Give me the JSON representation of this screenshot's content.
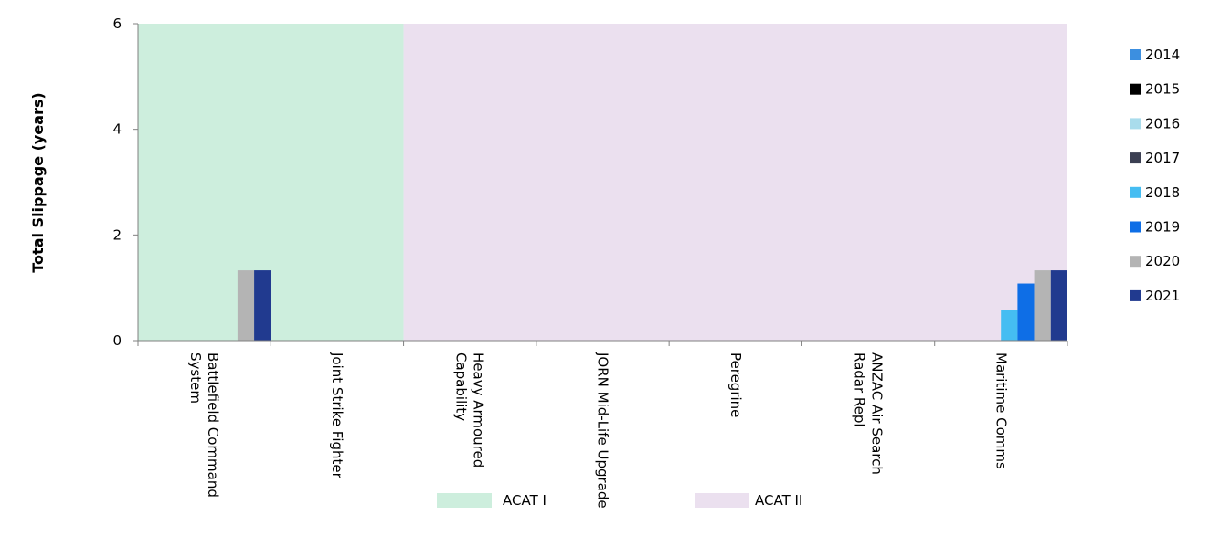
{
  "chart_data": {
    "type": "bar",
    "ylabel": "Total Slippage (years)",
    "ylim": [
      0,
      6
    ],
    "yticks": [
      0,
      2,
      4,
      6
    ],
    "grid": false,
    "legend_position": "right",
    "categories": [
      [
        "Battlefield Command",
        "System"
      ],
      [
        "Joint Strike Fighter"
      ],
      [
        "Heavy Armoured",
        "Capability"
      ],
      [
        "JORN Mid-Life Upgrade"
      ],
      [
        "Peregrine"
      ],
      [
        "ANZAC Air Search",
        "Radar Repl"
      ],
      [
        "Maritime Comms"
      ]
    ],
    "series": [
      {
        "name": "2014",
        "color": "#3c8fe0",
        "values": [
          0,
          0,
          0,
          0,
          0,
          0,
          0
        ]
      },
      {
        "name": "2015",
        "color": "#000000",
        "values": [
          0,
          0,
          0,
          0,
          0,
          0,
          0
        ]
      },
      {
        "name": "2016",
        "color": "#a9dcec",
        "values": [
          0,
          0,
          0,
          0,
          0,
          0,
          0
        ]
      },
      {
        "name": "2017",
        "color": "#3b3f52",
        "values": [
          0,
          0,
          0,
          0,
          0,
          0,
          0
        ]
      },
      {
        "name": "2018",
        "color": "#45bdf2",
        "values": [
          0,
          0,
          0,
          0,
          0,
          0,
          0.58
        ]
      },
      {
        "name": "2019",
        "color": "#0e6ee6",
        "values": [
          0,
          0,
          0,
          0,
          0,
          0,
          1.08
        ]
      },
      {
        "name": "2020",
        "color": "#b4b4b4",
        "values": [
          1.33,
          0,
          0,
          0,
          0,
          0,
          1.33
        ]
      },
      {
        "name": "2021",
        "color": "#213a8f",
        "values": [
          1.33,
          0,
          0,
          0,
          0,
          0,
          1.33
        ]
      }
    ],
    "bands": [
      {
        "name": "ACAT I",
        "color": "#cdeedd",
        "from_category": 0,
        "to_category": 1
      },
      {
        "name": "ACAT II",
        "color": "#ebe0ef",
        "from_category": 2,
        "to_category": 6
      }
    ]
  }
}
